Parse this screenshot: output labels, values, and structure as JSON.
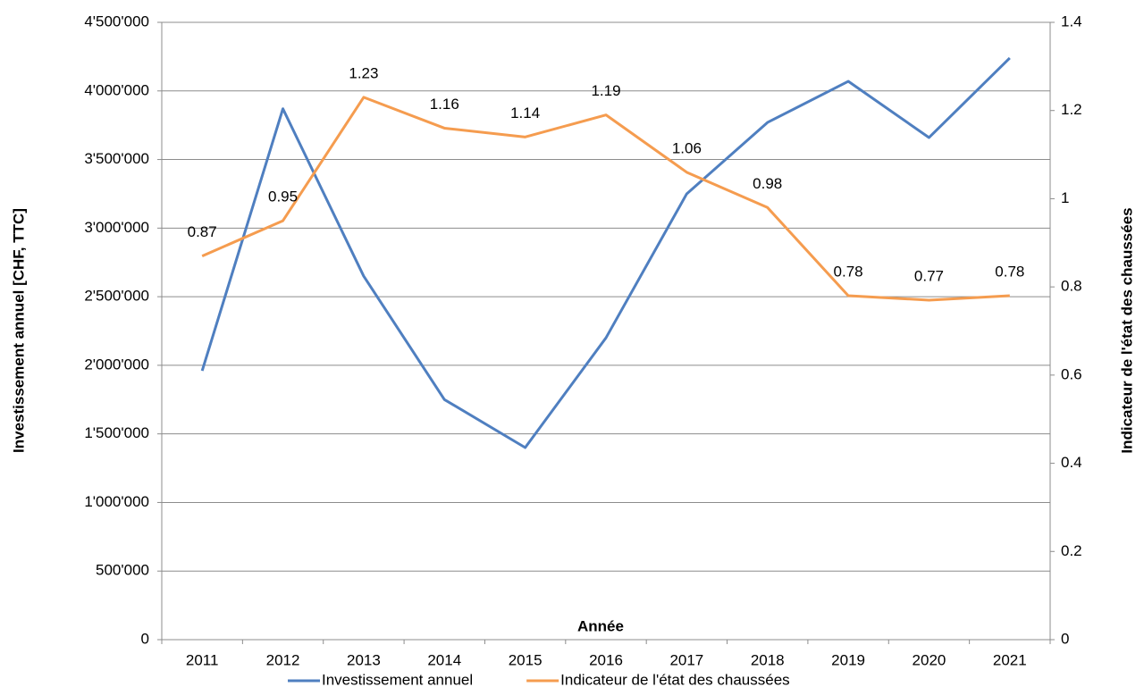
{
  "chart_data": {
    "type": "line",
    "x_label": "Année",
    "y_label": "Investissement annuel [CHF, TTC]",
    "y2_label": "Indicateur de l'état des chaussées",
    "categories": [
      "2011",
      "2012",
      "2013",
      "2014",
      "2015",
      "2016",
      "2017",
      "2018",
      "2019",
      "2020",
      "2021"
    ],
    "series": [
      {
        "name": "Investissement annuel",
        "color": "#4f7fc0",
        "values": [
          1960000,
          3870000,
          2650000,
          1750000,
          1400000,
          2200000,
          3250000,
          3770000,
          4070000,
          3660000,
          4240000
        ]
      },
      {
        "name": "Indicateur de l'état des chaussées",
        "color": "#f59c4f",
        "axis": "y2",
        "data_labels": true,
        "values": [
          0.87,
          0.95,
          1.23,
          1.16,
          1.14,
          1.19,
          1.06,
          0.98,
          0.78,
          0.77,
          0.78
        ]
      }
    ],
    "ylim": [
      0,
      4500000
    ],
    "yticks": [
      0,
      {
        "value": 500000,
        "label": "500'000"
      },
      {
        "value": 1000000,
        "label": "1'000'000"
      },
      {
        "value": 1500000,
        "label": "1'500'000"
      },
      {
        "value": 2000000,
        "label": "2'000'000"
      },
      {
        "value": 2500000,
        "label": "2'500'000"
      },
      {
        "value": 3000000,
        "label": "3'000'000"
      },
      {
        "value": 3500000,
        "label": "3'500'000"
      },
      {
        "value": 4000000,
        "label": "4'000'000"
      },
      {
        "value": 4500000,
        "label": "4'500'000"
      }
    ],
    "y2lim": [
      0,
      1.4
    ],
    "y2ticks": [
      0,
      0.2,
      0.4,
      0.6,
      0.8,
      1,
      1.2,
      1.4
    ],
    "grid": true,
    "legend": "bottom"
  }
}
